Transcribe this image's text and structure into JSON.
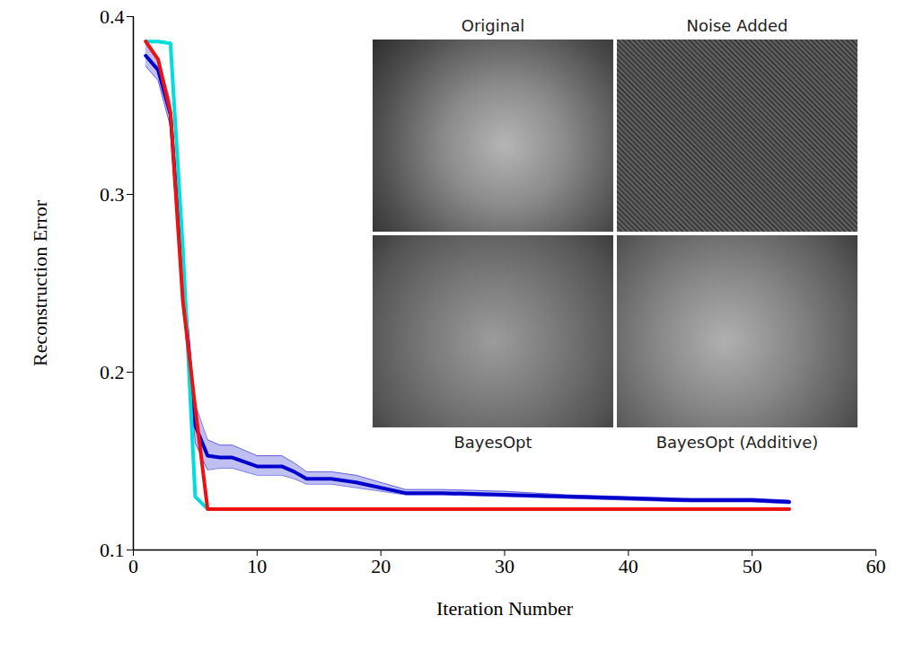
{
  "chart_data": {
    "type": "line",
    "x_label": "Iteration Number",
    "y_label": "Reconstruction Error",
    "x": [
      1,
      2,
      3,
      4,
      5,
      6,
      7,
      8,
      10,
      12,
      13,
      14,
      16,
      18,
      20,
      22,
      25,
      30,
      35,
      40,
      45,
      50,
      53
    ],
    "series": [
      {
        "color": "#0000cc",
        "values": [
          0.378,
          0.37,
          0.345,
          0.25,
          0.17,
          0.153,
          0.152,
          0.152,
          0.147,
          0.147,
          0.144,
          0.14,
          0.14,
          0.138,
          0.135,
          0.132,
          0.132,
          0.131,
          0.13,
          0.129,
          0.128,
          0.128,
          0.127
        ],
        "lower": [
          0.372,
          0.364,
          0.338,
          0.24,
          0.16,
          0.145,
          0.146,
          0.146,
          0.142,
          0.142,
          0.14,
          0.137,
          0.137,
          0.135,
          0.133,
          0.131,
          0.131,
          0.13,
          0.129,
          0.128,
          0.127,
          0.127,
          0.126
        ],
        "upper": [
          0.385,
          0.377,
          0.352,
          0.262,
          0.182,
          0.162,
          0.159,
          0.159,
          0.153,
          0.153,
          0.149,
          0.144,
          0.144,
          0.142,
          0.138,
          0.134,
          0.134,
          0.133,
          0.131,
          0.13,
          0.129,
          0.129,
          0.128
        ]
      },
      {
        "color": "#00dddd",
        "values": [
          0.386,
          0.386,
          0.385,
          0.27,
          0.13,
          0.123,
          0.123,
          0.123,
          0.123,
          0.123,
          0.123,
          0.123,
          0.123,
          0.123,
          0.123,
          0.123,
          0.123,
          0.123,
          0.123,
          0.123,
          0.123,
          0.123,
          0.123
        ]
      },
      {
        "color": "#ee1111",
        "values": [
          0.386,
          0.376,
          0.346,
          0.24,
          0.18,
          0.123,
          0.123,
          0.123,
          0.123,
          0.123,
          0.123,
          0.123,
          0.123,
          0.123,
          0.123,
          0.123,
          0.123,
          0.123,
          0.123,
          0.123,
          0.123,
          0.123,
          0.123
        ]
      }
    ],
    "xlim": [
      0,
      60
    ],
    "xticks": [
      0,
      10,
      20,
      30,
      40,
      50,
      60
    ],
    "ylim": [
      0.1,
      0.4
    ],
    "yticks": [
      0.1,
      0.2,
      0.3,
      0.4
    ],
    "annotations": [
      "Original",
      "Noise Added",
      "BayesOpt",
      "BayesOpt (Additive)"
    ]
  }
}
